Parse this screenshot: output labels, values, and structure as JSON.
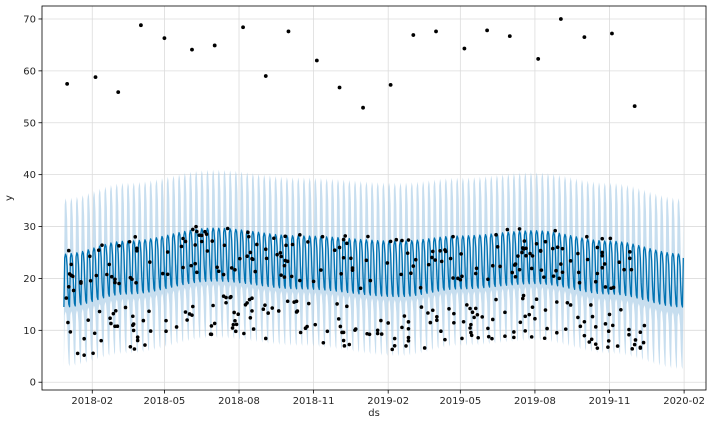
{
  "chart_data": {
    "type": "line",
    "title": "",
    "xlabel": "ds",
    "ylabel": "y",
    "x_ticks": [
      "2018-02",
      "2018-05",
      "2018-08",
      "2018-11",
      "2019-02",
      "2019-05",
      "2019-08",
      "2019-11",
      "2020-02"
    ],
    "x_range": [
      "2017-12-01",
      "2020-02-28"
    ],
    "y_ticks": [
      0,
      10,
      20,
      30,
      40,
      50,
      60,
      70
    ],
    "ylim": [
      -1.5,
      72.5
    ],
    "grid": true,
    "legend": "none",
    "series": [
      {
        "kind": "forecast",
        "color": "#0072B2",
        "band_color": "#A9CCE6",
        "x_start": "2017-12-28",
        "x_end": "2020-01-31",
        "trend_keyframes": [
          {
            "x": "2017-12-28",
            "v": 14.5
          },
          {
            "x": "2018-03-15",
            "v": 17.0
          },
          {
            "x": "2018-07-01",
            "v": 19.5
          },
          {
            "x": "2018-10-15",
            "v": 18.0
          },
          {
            "x": "2019-02-15",
            "v": 16.5
          },
          {
            "x": "2019-05-01",
            "v": 18.0
          },
          {
            "x": "2019-08-01",
            "v": 19.0
          },
          {
            "x": "2019-11-01",
            "v": 17.0
          },
          {
            "x": "2020-01-31",
            "v": 14.5
          }
        ],
        "peak_keyframes": [
          {
            "x": "2017-12-28",
            "v": 25.0
          },
          {
            "x": "2018-03-15",
            "v": 27.5
          },
          {
            "x": "2018-07-01",
            "v": 30.0
          },
          {
            "x": "2018-10-15",
            "v": 28.5
          },
          {
            "x": "2019-02-15",
            "v": 27.5
          },
          {
            "x": "2019-05-01",
            "v": 28.5
          },
          {
            "x": "2019-08-01",
            "v": 29.5
          },
          {
            "x": "2019-11-01",
            "v": 27.5
          },
          {
            "x": "2020-01-31",
            "v": 25.0
          }
        ],
        "band_lower_keyframes": [
          {
            "x": "2017-12-28",
            "v": 3.0
          },
          {
            "x": "2018-03-15",
            "v": 5.5
          },
          {
            "x": "2018-07-01",
            "v": 8.5
          },
          {
            "x": "2018-10-15",
            "v": 7.0
          },
          {
            "x": "2019-02-15",
            "v": 5.0
          },
          {
            "x": "2019-05-01",
            "v": 7.0
          },
          {
            "x": "2019-08-01",
            "v": 8.0
          },
          {
            "x": "2019-11-01",
            "v": 5.5
          },
          {
            "x": "2020-01-31",
            "v": 2.5
          }
        ],
        "band_upper_keyframes": [
          {
            "x": "2017-12-28",
            "v": 36.0
          },
          {
            "x": "2018-03-15",
            "v": 39.0
          },
          {
            "x": "2018-07-01",
            "v": 41.5
          },
          {
            "x": "2018-10-15",
            "v": 40.0
          },
          {
            "x": "2019-02-15",
            "v": 39.0
          },
          {
            "x": "2019-05-01",
            "v": 40.0
          },
          {
            "x": "2019-08-01",
            "v": 41.0
          },
          {
            "x": "2019-11-01",
            "v": 39.0
          },
          {
            "x": "2020-01-31",
            "v": 36.0
          }
        ]
      },
      {
        "kind": "observed",
        "color": "#000000",
        "marker": "dot",
        "outliers": [
          {
            "x": "2018-01-01",
            "y": 57.5
          },
          {
            "x": "2018-02-05",
            "y": 58.8
          },
          {
            "x": "2018-03-05",
            "y": 55.9
          },
          {
            "x": "2018-04-02",
            "y": 68.8
          },
          {
            "x": "2018-05-01",
            "y": 66.3
          },
          {
            "x": "2018-06-04",
            "y": 64.1
          },
          {
            "x": "2018-07-02",
            "y": 64.9
          },
          {
            "x": "2018-08-06",
            "y": 68.4
          },
          {
            "x": "2018-09-03",
            "y": 59.0
          },
          {
            "x": "2018-10-01",
            "y": 67.6
          },
          {
            "x": "2018-11-05",
            "y": 62.0
          },
          {
            "x": "2018-12-03",
            "y": 56.8
          },
          {
            "x": "2019-01-01",
            "y": 52.9
          },
          {
            "x": "2019-02-04",
            "y": 57.3
          },
          {
            "x": "2019-03-04",
            "y": 66.9
          },
          {
            "x": "2019-04-01",
            "y": 67.6
          },
          {
            "x": "2019-05-06",
            "y": 64.3
          },
          {
            "x": "2019-06-03",
            "y": 67.8
          },
          {
            "x": "2019-07-01",
            "y": 66.7
          },
          {
            "x": "2019-08-05",
            "y": 62.3
          },
          {
            "x": "2019-09-02",
            "y": 70.0
          },
          {
            "x": "2019-10-01",
            "y": 66.5
          },
          {
            "x": "2019-11-04",
            "y": 67.2
          },
          {
            "x": "2019-12-02",
            "y": 53.2
          }
        ],
        "daily_range": [
          "2017-12-31",
          "2019-12-16"
        ],
        "daily_generated_points": 380
      }
    ]
  }
}
